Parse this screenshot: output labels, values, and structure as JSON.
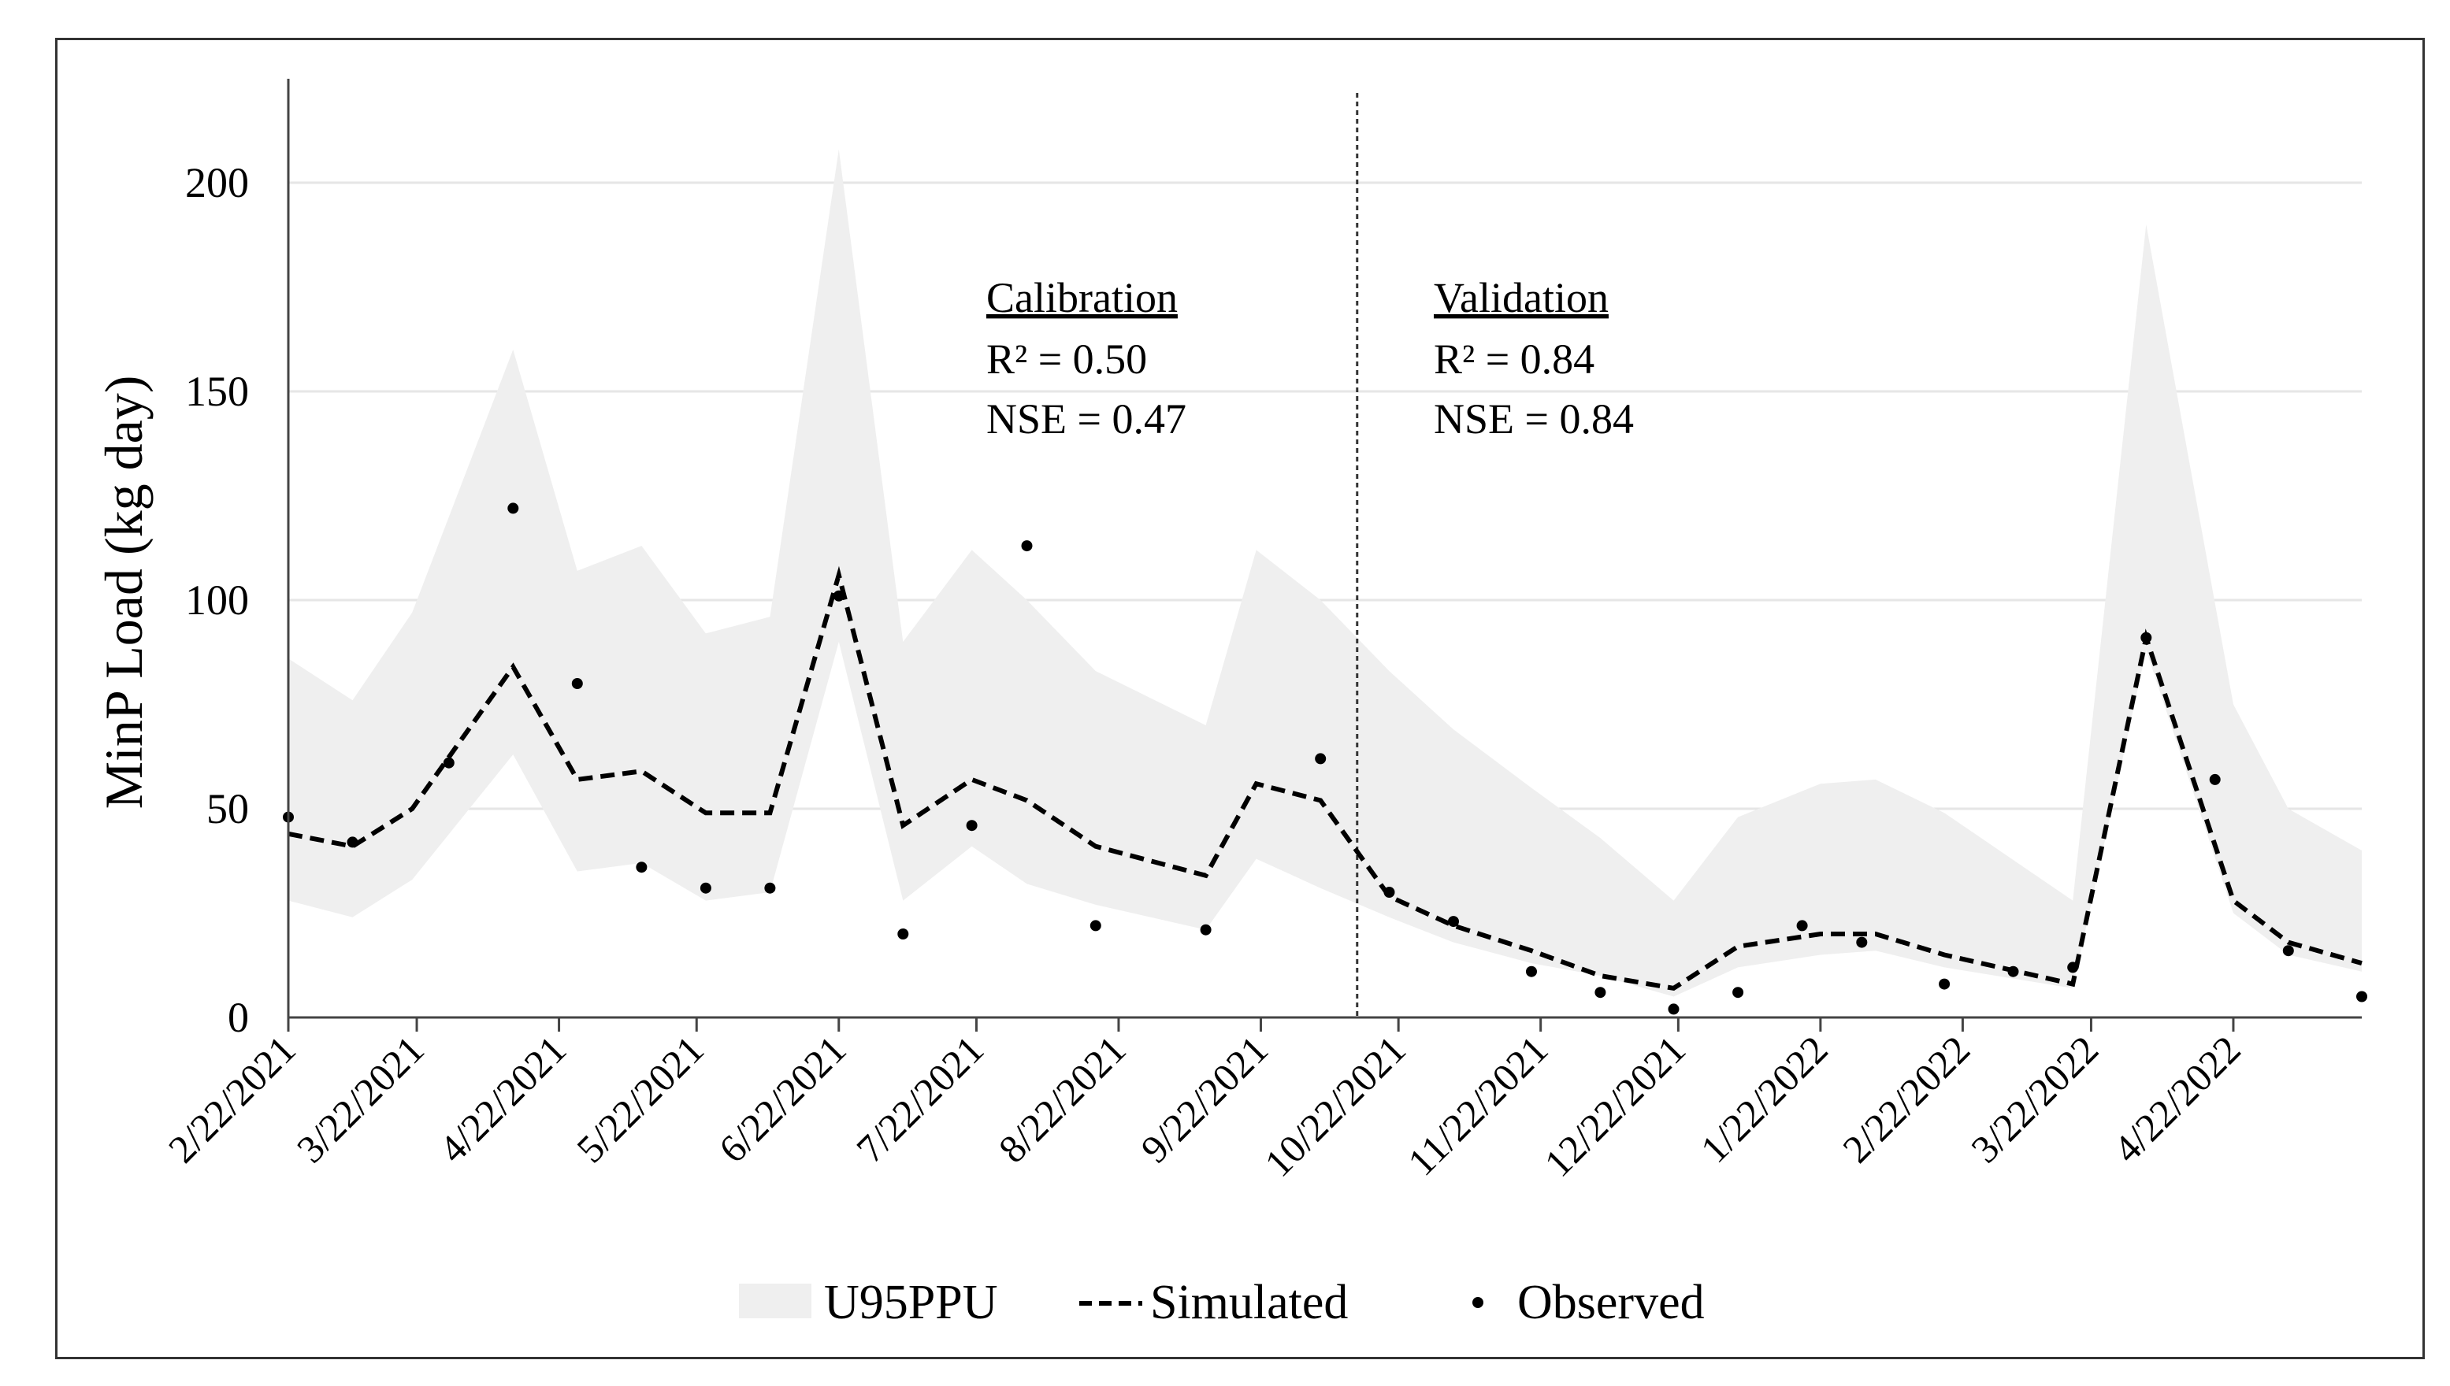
{
  "chart_data": {
    "type": "line",
    "title": "",
    "xlabel": "",
    "ylabel": "MinP Load (kg day)",
    "ylim": [
      0,
      225
    ],
    "yticks": [
      "0",
      "50",
      "100",
      "150",
      "200"
    ],
    "x_range": [
      0,
      452
    ],
    "xtick_labels": [
      {
        "label": "2/22/2021",
        "t": 0
      },
      {
        "label": "3/22/2021",
        "t": 28
      },
      {
        "label": "4/22/2021",
        "t": 59
      },
      {
        "label": "5/22/2021",
        "t": 89
      },
      {
        "label": "6/22/2021",
        "t": 120
      },
      {
        "label": "7/22/2021",
        "t": 150
      },
      {
        "label": "8/22/2021",
        "t": 181
      },
      {
        "label": "9/22/2021",
        "t": 212
      },
      {
        "label": "10/22/2021",
        "t": 242
      },
      {
        "label": "11/22/2021",
        "t": 273
      },
      {
        "label": "12/22/2021",
        "t": 303
      },
      {
        "label": "1/22/2022",
        "t": 334
      },
      {
        "label": "2/22/2022",
        "t": 365
      },
      {
        "label": "3/22/2022",
        "t": 393
      },
      {
        "label": "4/22/2022",
        "t": 424
      }
    ],
    "x": [
      0,
      14,
      27,
      49,
      63,
      77,
      91,
      105,
      120,
      134,
      149,
      161,
      176,
      200,
      211,
      225,
      240,
      254,
      271,
      286,
      302,
      316,
      334,
      346,
      361,
      389,
      405,
      424,
      436,
      452
    ],
    "series": [
      {
        "name": "U95PPU",
        "type": "band",
        "upper": [
          86,
          76,
          97,
          160,
          107,
          113,
          92,
          96,
          208,
          90,
          112,
          100,
          83,
          70,
          112,
          100,
          83,
          69,
          55,
          43,
          28,
          48,
          56,
          57,
          49,
          28,
          190,
          75,
          50,
          40
        ],
        "lower": [
          28,
          24,
          33,
          63,
          35,
          37,
          28,
          30,
          90,
          28,
          41,
          32,
          27,
          21,
          38,
          31,
          24,
          18,
          13,
          10,
          5,
          12,
          15,
          16,
          12,
          7,
          88,
          25,
          15,
          11
        ]
      },
      {
        "name": "Simulated",
        "type": "line",
        "values": [
          44,
          41,
          50,
          84,
          57,
          59,
          49,
          49,
          106,
          46,
          57,
          52,
          41,
          34,
          56,
          52,
          29,
          22,
          16,
          10,
          7,
          17,
          20,
          20,
          15,
          8,
          91,
          28,
          18,
          13
        ]
      },
      {
        "name": "Observed",
        "type": "scatter",
        "x": [
          0,
          14,
          35,
          49,
          63,
          77,
          91,
          105,
          120,
          134,
          149,
          161,
          176,
          200,
          225,
          240,
          254,
          271,
          286,
          302,
          316,
          330,
          343,
          361,
          376,
          389,
          405,
          420,
          436,
          452
        ],
        "values": [
          48,
          42,
          61,
          122,
          80,
          36,
          31,
          31,
          101,
          20,
          46,
          113,
          22,
          21,
          62,
          30,
          23,
          11,
          6,
          2,
          6,
          22,
          18,
          8,
          11,
          12,
          91,
          57,
          16,
          5
        ]
      }
    ],
    "divider_t": 233,
    "annotations": [
      {
        "heading": "Calibration",
        "r2": "R² = 0.50",
        "nse": "NSE = 0.47"
      },
      {
        "heading": "Validation",
        "r2": "R² = 0.84",
        "nse": "NSE = 0.84"
      }
    ],
    "legend": {
      "position": "bottom",
      "items": [
        "U95PPU",
        "Simulated",
        "Observed"
      ]
    },
    "colors": {
      "band": "#efefef",
      "line": "#000000",
      "grid": "#e6e6e6",
      "axis": "#444444"
    }
  }
}
